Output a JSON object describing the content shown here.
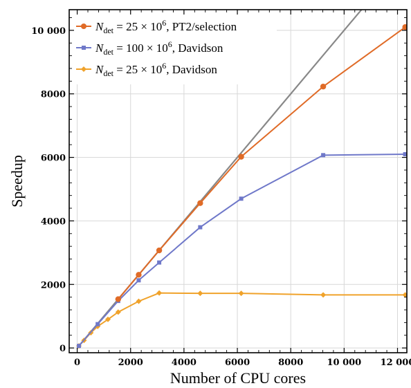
{
  "chart_data": {
    "type": "line",
    "xlabel": "Number of CPU cores",
    "ylabel": "Speedup",
    "xlim": [
      -300,
      12350
    ],
    "ylim": [
      -150,
      10650
    ],
    "xticks": [
      0,
      2000,
      4000,
      6000,
      8000,
      10000,
      12000
    ],
    "xtick_labels": [
      "0",
      "2000",
      "4000",
      "6000",
      "8000",
      "10 000",
      "12 000"
    ],
    "yticks": [
      0,
      2000,
      4000,
      6000,
      8000,
      10000
    ],
    "ytick_labels": [
      "0",
      "2000",
      "4000",
      "6000",
      "8000",
      "10 000"
    ],
    "grid": true,
    "legend_position": "top-left",
    "colors": {
      "pt2": "#e06b27",
      "dav100": "#6f78c9",
      "dav25": "#f0a22a",
      "ideal": "#888888"
    },
    "ideal_line": {
      "x": [
        0,
        12400
      ],
      "y": [
        0,
        12400
      ]
    },
    "series": [
      {
        "name": "N_det = 25 × 10^6, PT2/selection",
        "legend": {
          "prefix": "N",
          "sub": "det",
          "mid": " =   25 × 10",
          "sup": "6",
          "suffix": ", PT2/selection"
        },
        "color": "#e06b27",
        "marker": "circle",
        "x": [
          1536,
          2304,
          3072,
          4608,
          6144,
          9216,
          12288
        ],
        "y": [
          1536,
          2304,
          3072,
          4560,
          6020,
          8230,
          10100
        ]
      },
      {
        "name": "N_det = 100 × 10^6, Davidson",
        "legend": {
          "prefix": "N",
          "sub": "det",
          "mid": " = 100 × 10",
          "sup": "6",
          "suffix": ", Davidson"
        },
        "color": "#6f78c9",
        "marker": "square",
        "x": [
          64,
          768,
          1536,
          2304,
          3072,
          4608,
          6144,
          9216,
          12288
        ],
        "y": [
          64,
          750,
          1480,
          2130,
          2690,
          3800,
          4700,
          6070,
          6100
        ]
      },
      {
        "name": "N_det = 25 × 10^6, Davidson",
        "legend": {
          "prefix": "N",
          "sub": "det",
          "mid": " =   25 × 10",
          "sup": "6",
          "suffix": ", Davidson"
        },
        "color": "#f0a22a",
        "marker": "diamond",
        "x": [
          64,
          256,
          512,
          768,
          1152,
          1536,
          2304,
          3072,
          4608,
          6144,
          9216,
          12288
        ],
        "y": [
          64,
          240,
          480,
          680,
          900,
          1130,
          1470,
          1730,
          1720,
          1720,
          1670,
          1670
        ]
      }
    ]
  }
}
